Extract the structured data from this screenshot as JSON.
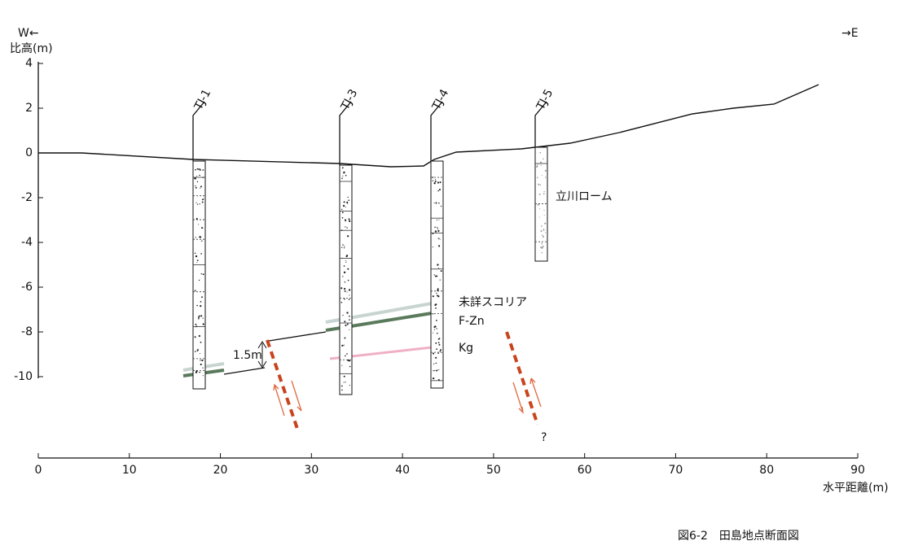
{
  "header": {
    "west": "W←",
    "east": "→E",
    "y_axis_title": "比高(m)",
    "x_axis_title": "水平距離(m)"
  },
  "y_axis": {
    "ticks": [
      4,
      2,
      0,
      -2,
      -4,
      -6,
      -8,
      -10
    ]
  },
  "x_axis": {
    "ticks": [
      0,
      10,
      20,
      30,
      40,
      50,
      60,
      70,
      80,
      90
    ]
  },
  "boreholes": [
    {
      "label": "TJ-1"
    },
    {
      "label": "TJ-3"
    },
    {
      "label": "TJ-4"
    },
    {
      "label": "TJ-5"
    }
  ],
  "annotations": {
    "loam": "立川ローム",
    "scoria": "未詳スコリア",
    "fzn": "F-Zn",
    "kg": "Kg",
    "offset": "1.5m",
    "question": "?"
  },
  "caption": "図6-2　田島地点断面図"
}
